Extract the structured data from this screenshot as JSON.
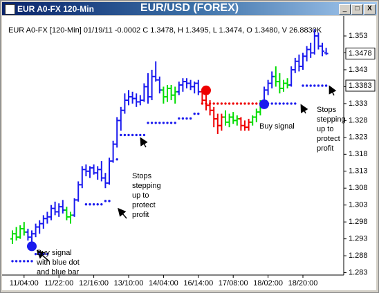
{
  "chart_data": {
    "type": "ohlc",
    "window_title": "EUR A0-FX 120-Min",
    "title": "EUR/USD (FOREX)",
    "subtitle": "EUR A0-FX [120-Min] 01/19/11  -0.0002 C 1.3478, H 1.3495, L 1.3474, O 1.3480, V 26.8830K",
    "categories": [
      null,
      null,
      null,
      "11/04:00",
      null,
      null,
      null,
      null,
      null,
      null,
      null,
      null,
      "11/22:00",
      null,
      null,
      null,
      null,
      null,
      null,
      null,
      null,
      "12/16:00",
      null,
      null,
      null,
      null,
      null,
      null,
      null,
      null,
      "13/10:00",
      null,
      null,
      null,
      null,
      null,
      null,
      null,
      null,
      "14/04:00",
      null,
      null,
      null,
      null,
      null,
      null,
      null,
      null,
      "16/14:00",
      null,
      null,
      null,
      null,
      null,
      null,
      null,
      null,
      "17/08:00",
      null,
      null,
      null,
      null,
      null,
      null,
      null,
      null,
      "18/02:00",
      null,
      null,
      null,
      null,
      null,
      null,
      null,
      null,
      "18/20:00",
      null,
      null,
      null,
      null,
      null,
      null
    ],
    "open": [
      1.293,
      1.2945,
      1.2935,
      1.296,
      1.295,
      1.2935,
      1.2945,
      1.2965,
      1.2975,
      1.299,
      1.2995,
      1.302,
      1.301,
      1.3025,
      1.3015,
      1.2995,
      1.3,
      1.3045,
      1.309,
      1.3135,
      1.313,
      1.314,
      1.3125,
      1.3135,
      1.311,
      1.3095,
      1.316,
      1.321,
      1.328,
      1.331,
      1.334,
      1.335,
      1.3345,
      1.3335,
      1.334,
      1.338,
      1.335,
      1.341,
      1.34,
      1.337,
      1.335,
      1.3375,
      1.3355,
      1.3365,
      1.3385,
      1.3395,
      1.339,
      1.338,
      1.339,
      1.3365,
      1.334,
      1.3325,
      1.331,
      1.3285,
      1.3265,
      1.329,
      1.3275,
      1.329,
      1.328,
      1.3285,
      1.3265,
      1.326,
      1.3275,
      1.329,
      1.3305,
      1.333,
      1.337,
      1.339,
      1.341,
      1.3395,
      1.3375,
      1.339,
      1.3385,
      1.343,
      1.3455,
      1.344,
      1.347,
      1.349,
      1.348,
      1.353,
      1.35,
      1.348
    ],
    "high": [
      1.2955,
      1.2965,
      1.297,
      1.298,
      1.296,
      1.2955,
      1.2975,
      1.2985,
      1.3,
      1.301,
      1.303,
      1.304,
      1.3035,
      1.3045,
      1.3025,
      1.301,
      1.305,
      1.31,
      1.3145,
      1.315,
      1.3145,
      1.315,
      1.3145,
      1.316,
      1.3125,
      1.317,
      1.322,
      1.329,
      1.332,
      1.336,
      1.337,
      1.3365,
      1.336,
      1.3355,
      1.339,
      1.342,
      1.343,
      1.3455,
      1.341,
      1.338,
      1.3385,
      1.3385,
      1.338,
      1.3395,
      1.3405,
      1.3405,
      1.34,
      1.3395,
      1.34,
      1.3375,
      1.3355,
      1.334,
      1.332,
      1.33,
      1.33,
      1.331,
      1.33,
      1.3305,
      1.3295,
      1.329,
      1.328,
      1.3285,
      1.3295,
      1.3315,
      1.334,
      1.338,
      1.34,
      1.3425,
      1.344,
      1.342,
      1.34,
      1.3405,
      1.344,
      1.3465,
      1.3475,
      1.348,
      1.35,
      1.351,
      1.355,
      1.354,
      1.351,
      1.3495
    ],
    "low": [
      1.2915,
      1.2925,
      1.293,
      1.294,
      1.2925,
      1.291,
      1.2935,
      1.2945,
      1.296,
      1.2975,
      1.2985,
      1.3,
      1.2995,
      1.3005,
      1.2985,
      1.2975,
      1.2995,
      1.304,
      1.308,
      1.3115,
      1.311,
      1.312,
      1.3105,
      1.31,
      1.308,
      1.309,
      1.3155,
      1.32,
      1.325,
      1.33,
      1.3325,
      1.333,
      1.332,
      1.3325,
      1.3335,
      1.333,
      1.334,
      1.3395,
      1.336,
      1.333,
      1.3335,
      1.334,
      1.333,
      1.3355,
      1.3365,
      1.3375,
      1.337,
      1.336,
      1.3355,
      1.333,
      1.331,
      1.3295,
      1.326,
      1.324,
      1.325,
      1.3265,
      1.326,
      1.327,
      1.3265,
      1.325,
      1.325,
      1.325,
      1.3265,
      1.3275,
      1.3295,
      1.332,
      1.3355,
      1.3375,
      1.338,
      1.336,
      1.3365,
      1.3375,
      1.338,
      1.342,
      1.3425,
      1.343,
      1.3455,
      1.3465,
      1.3475,
      1.349,
      1.347,
      1.3474
    ],
    "close": [
      1.2945,
      1.2935,
      1.296,
      1.295,
      1.2935,
      1.2945,
      1.2965,
      1.2975,
      1.299,
      1.2995,
      1.302,
      1.301,
      1.3025,
      1.3015,
      1.2995,
      1.3,
      1.3045,
      1.309,
      1.3135,
      1.313,
      1.314,
      1.3125,
      1.3135,
      1.311,
      1.3095,
      1.316,
      1.321,
      1.328,
      1.331,
      1.334,
      1.335,
      1.3345,
      1.3335,
      1.334,
      1.338,
      1.335,
      1.341,
      1.34,
      1.337,
      1.335,
      1.3375,
      1.3355,
      1.3365,
      1.3385,
      1.3395,
      1.339,
      1.338,
      1.339,
      1.3365,
      1.334,
      1.3325,
      1.331,
      1.3285,
      1.3265,
      1.329,
      1.3275,
      1.329,
      1.328,
      1.3285,
      1.3265,
      1.326,
      1.3275,
      1.329,
      1.3305,
      1.333,
      1.337,
      1.339,
      1.341,
      1.3395,
      1.3375,
      1.339,
      1.3385,
      1.343,
      1.3455,
      1.344,
      1.347,
      1.349,
      1.348,
      1.353,
      1.35,
      1.3485,
      1.3478
    ],
    "bar_colors": [
      "#00dd00",
      "#00dd00",
      "#00dd00",
      "#00dd00",
      "#1a1aee",
      "#1a1aee",
      "#1a1aee",
      "#1a1aee",
      "#1a1aee",
      "#1a1aee",
      "#1a1aee",
      "#1a1aee",
      "#1a1aee",
      "#1a1aee",
      "#00dd00",
      "#00dd00",
      "#1a1aee",
      "#1a1aee",
      "#1a1aee",
      "#1a1aee",
      "#1a1aee",
      "#1a1aee",
      "#1a1aee",
      "#1a1aee",
      "#1a1aee",
      "#1a1aee",
      "#1a1aee",
      "#1a1aee",
      "#1a1aee",
      "#1a1aee",
      "#1a1aee",
      "#1a1aee",
      "#1a1aee",
      "#1a1aee",
      "#1a1aee",
      "#1a1aee",
      "#1a1aee",
      "#1a1aee",
      "#1a1aee",
      "#00dd00",
      "#00dd00",
      "#00dd00",
      "#00dd00",
      "#1a1aee",
      "#1a1aee",
      "#1a1aee",
      "#1a1aee",
      "#1a1aee",
      "#1a1aee",
      "#ee0000",
      "#ee0000",
      "#ee0000",
      "#ee0000",
      "#ee0000",
      "#ee0000",
      "#00dd00",
      "#00dd00",
      "#00dd00",
      "#00dd00",
      "#ee0000",
      "#ee0000",
      "#ee0000",
      "#00dd00",
      "#00dd00",
      "#00dd00",
      "#1a1aee",
      "#1a1aee",
      "#1a1aee",
      "#00dd00",
      "#00dd00",
      "#00dd00",
      "#00dd00",
      "#1a1aee",
      "#1a1aee",
      "#1a1aee",
      "#1a1aee",
      "#1a1aee",
      "#1a1aee",
      "#1a1aee",
      "#1a1aee",
      "#1a1aee",
      "#1a1aee"
    ],
    "stop_series": [
      {
        "color": "#1a1aee",
        "values": [
          1.2864,
          1.2864,
          1.2864,
          1.2864,
          1.2864,
          1.2864,
          1.2885,
          1.2885,
          1.2885,
          1.2885,
          null,
          null,
          null,
          null,
          null,
          null,
          null,
          null,
          null,
          1.3032,
          1.3032,
          1.3032,
          1.3032,
          1.3032,
          1.3042,
          1.3042,
          null,
          1.3165,
          1.3237,
          1.3237,
          1.3237,
          1.3237,
          1.3237,
          1.3237,
          1.3237,
          1.3273,
          1.3273,
          1.3273,
          1.3273,
          1.3273,
          1.3273,
          1.3273,
          1.3273,
          1.3286,
          1.3286,
          1.3286,
          1.3286,
          1.33,
          1.33,
          null,
          null,
          null,
          null,
          null,
          null,
          null,
          null,
          null,
          null,
          null,
          null,
          null,
          null,
          null,
          null,
          1.333,
          1.333,
          1.333,
          1.333,
          1.333,
          1.333,
          1.333,
          1.333,
          1.333,
          null,
          1.3383,
          1.3383,
          1.3383,
          1.3383,
          1.3383,
          1.3383,
          1.3383
        ]
      },
      {
        "color": "#ee0000",
        "values": [
          null,
          null,
          null,
          null,
          null,
          null,
          null,
          null,
          null,
          null,
          null,
          null,
          null,
          null,
          null,
          null,
          null,
          null,
          null,
          null,
          null,
          null,
          null,
          null,
          null,
          null,
          null,
          null,
          null,
          null,
          null,
          null,
          null,
          null,
          null,
          null,
          null,
          null,
          null,
          null,
          null,
          null,
          null,
          null,
          null,
          null,
          null,
          null,
          null,
          1.333,
          1.333,
          1.333,
          1.333,
          1.333,
          1.333,
          1.333,
          1.333,
          1.333,
          1.333,
          1.333,
          1.333,
          1.333,
          1.333,
          1.333,
          1.333,
          null,
          null,
          null,
          null,
          null,
          null,
          null,
          null,
          null,
          null,
          null,
          null,
          null,
          null,
          null,
          null,
          null
        ]
      }
    ],
    "signals": [
      {
        "index": 5,
        "value": 1.2908,
        "color": "#1a1aee"
      },
      {
        "index": 50,
        "value": 1.3369,
        "color": "#ee0000"
      },
      {
        "index": 65,
        "value": 1.3328,
        "color": "#1a1aee"
      }
    ],
    "last_price": 1.3478,
    "last_stop": 1.3383,
    "ylim": [
      1.2823,
      1.3575
    ],
    "yticks": [
      1.283,
      1.288,
      1.293,
      1.298,
      1.303,
      1.308,
      1.313,
      1.318,
      1.323,
      1.328,
      1.333,
      1.338,
      1.343,
      1.348,
      1.353
    ],
    "annotations": [
      {
        "lines": [
          "Buy signal",
          "with blue dot",
          "and blue bar"
        ]
      },
      {
        "lines": [
          "Stops",
          "stepping",
          "up to",
          "protect",
          "profit"
        ]
      },
      {
        "lines": [
          "Buy signal"
        ]
      },
      {
        "lines": [
          "Stops",
          "stepping",
          "up to",
          "protect",
          "profit"
        ]
      }
    ]
  }
}
